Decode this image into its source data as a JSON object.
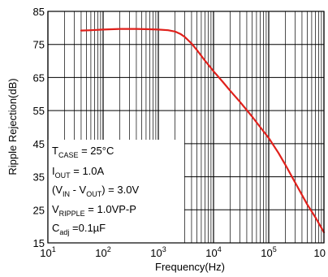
{
  "chart_data": {
    "type": "line",
    "xlabel": "Frequency(Hz)",
    "ylabel": "Ripple Rejection(dB)",
    "x_scale": "log",
    "xlim": [
      10,
      1000000
    ],
    "ylim": [
      15,
      85
    ],
    "grid": true,
    "ytick_labels": [
      "15",
      "25",
      "35",
      "45",
      "55",
      "65",
      "75",
      "85"
    ],
    "yticks": [
      15,
      25,
      35,
      45,
      55,
      65,
      75,
      85
    ],
    "xtick_labels": [
      {
        "base": "10",
        "exp": "1"
      },
      {
        "base": "10",
        "exp": "2"
      },
      {
        "base": "10",
        "exp": "3"
      },
      {
        "base": "10",
        "exp": "4"
      },
      {
        "base": "10",
        "exp": "5"
      },
      {
        "base": "10",
        "exp": ""
      }
    ],
    "xticks": [
      10,
      100,
      1000,
      10000,
      100000,
      1000000
    ],
    "series": [
      {
        "color": "#e0201b",
        "x": [
          40,
          60,
          100,
          200,
          400,
          700,
          1000,
          1500,
          2000,
          2500,
          3000,
          4000,
          5000,
          7000,
          10000,
          15000,
          20000,
          30000,
          50000,
          70000,
          100000,
          150000,
          200000,
          300000,
          500000,
          700000,
          1000000
        ],
        "y": [
          79.2,
          79.3,
          79.5,
          79.7,
          79.7,
          79.6,
          79.5,
          79.3,
          78.9,
          78.2,
          77.3,
          75.3,
          73.3,
          70.1,
          66.9,
          63.5,
          61.0,
          57.7,
          53.2,
          50.0,
          46.7,
          42.2,
          38.6,
          33.3,
          26.6,
          22.7,
          18.2
        ]
      }
    ],
    "annotations": [
      {
        "main": "T",
        "sub": "CASE",
        "tail": " = 25°C"
      },
      {
        "main": "I",
        "sub": "OUT",
        "tail": " = 1.0A"
      },
      {
        "main": "(V",
        "sub": "IN",
        "mid": " - V",
        "sub2": "OUT",
        "tail": ") = 3.0V"
      },
      {
        "main": "V",
        "sub": "RIPPLE",
        "tail": " = 1.0VP-P"
      },
      {
        "main": "C",
        "sub": "adj",
        "tail": " =0.1µF"
      }
    ]
  }
}
